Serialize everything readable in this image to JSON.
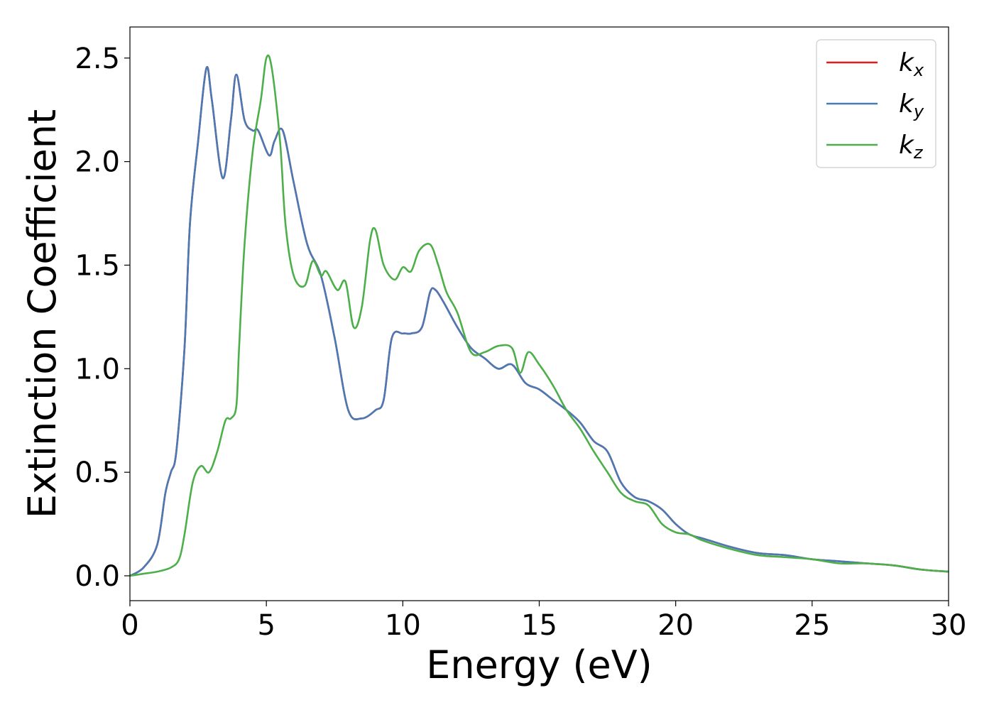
{
  "chart_data": {
    "type": "line",
    "title": "",
    "xlabel": "Energy (eV)",
    "ylabel": "Extinction Coefficient",
    "xlim": [
      0,
      30
    ],
    "ylim": [
      -0.12,
      2.65
    ],
    "xticks": [
      0,
      5,
      10,
      15,
      20,
      25,
      30
    ],
    "yticks": [
      0.0,
      0.5,
      1.0,
      1.5,
      2.0,
      2.5
    ],
    "xtick_labels": [
      "0",
      "5",
      "10",
      "15",
      "20",
      "25",
      "30"
    ],
    "ytick_labels": [
      "0.0",
      "0.5",
      "1.0",
      "1.5",
      "2.0",
      "2.5"
    ],
    "grid": false,
    "legend_position": "top-right",
    "series": [
      {
        "name": "k",
        "sub": "x",
        "color": "#e41a1c",
        "x": [
          0,
          0.5,
          1.0,
          1.3,
          1.5,
          1.7,
          2.0,
          2.2,
          2.5,
          2.8,
          3.0,
          3.4,
          3.7,
          3.9,
          4.2,
          4.5,
          4.7,
          5.1,
          5.3,
          5.6,
          6.0,
          6.5,
          7.0,
          7.5,
          8.0,
          8.5,
          9.0,
          9.3,
          9.6,
          10.0,
          10.3,
          10.7,
          11.0,
          11.2,
          11.5,
          12.0,
          12.5,
          13.0,
          13.5,
          14.0,
          14.5,
          15.0,
          15.5,
          16.0,
          16.5,
          17.0,
          17.5,
          18.0,
          18.5,
          19.0,
          19.5,
          20.0,
          20.5,
          21.0,
          22.0,
          23.0,
          24.0,
          25.0,
          26.0,
          27.0,
          28.0,
          29.0,
          30.0
        ],
        "values": [
          0.0,
          0.04,
          0.15,
          0.4,
          0.5,
          0.6,
          1.1,
          1.7,
          2.1,
          2.45,
          2.3,
          1.92,
          2.2,
          2.42,
          2.2,
          2.15,
          2.15,
          2.03,
          2.1,
          2.15,
          1.9,
          1.6,
          1.45,
          1.15,
          0.8,
          0.76,
          0.8,
          0.85,
          1.15,
          1.17,
          1.17,
          1.2,
          1.37,
          1.38,
          1.32,
          1.2,
          1.1,
          1.05,
          1.0,
          1.02,
          0.93,
          0.9,
          0.85,
          0.8,
          0.74,
          0.65,
          0.6,
          0.45,
          0.38,
          0.36,
          0.32,
          0.25,
          0.2,
          0.18,
          0.14,
          0.11,
          0.1,
          0.08,
          0.07,
          0.06,
          0.05,
          0.03,
          0.02
        ]
      },
      {
        "name": "k",
        "sub": "y",
        "color": "#4a7ab5",
        "x": [
          0,
          0.5,
          1.0,
          1.3,
          1.5,
          1.7,
          2.0,
          2.2,
          2.5,
          2.8,
          3.0,
          3.4,
          3.7,
          3.9,
          4.2,
          4.5,
          4.7,
          5.1,
          5.3,
          5.6,
          6.0,
          6.5,
          7.0,
          7.5,
          8.0,
          8.5,
          9.0,
          9.3,
          9.6,
          10.0,
          10.3,
          10.7,
          11.0,
          11.2,
          11.5,
          12.0,
          12.5,
          13.0,
          13.5,
          14.0,
          14.5,
          15.0,
          15.5,
          16.0,
          16.5,
          17.0,
          17.5,
          18.0,
          18.5,
          19.0,
          19.5,
          20.0,
          20.5,
          21.0,
          22.0,
          23.0,
          24.0,
          25.0,
          26.0,
          27.0,
          28.0,
          29.0,
          30.0
        ],
        "values": [
          0.0,
          0.04,
          0.15,
          0.4,
          0.5,
          0.6,
          1.1,
          1.7,
          2.1,
          2.45,
          2.3,
          1.92,
          2.2,
          2.42,
          2.2,
          2.15,
          2.15,
          2.03,
          2.1,
          2.15,
          1.9,
          1.6,
          1.45,
          1.15,
          0.8,
          0.76,
          0.8,
          0.85,
          1.15,
          1.17,
          1.17,
          1.2,
          1.37,
          1.38,
          1.32,
          1.2,
          1.1,
          1.05,
          1.0,
          1.02,
          0.93,
          0.9,
          0.85,
          0.8,
          0.74,
          0.65,
          0.6,
          0.45,
          0.38,
          0.36,
          0.32,
          0.25,
          0.2,
          0.18,
          0.14,
          0.11,
          0.1,
          0.08,
          0.07,
          0.06,
          0.05,
          0.03,
          0.02
        ]
      },
      {
        "name": "k",
        "sub": "z",
        "color": "#4daf4a",
        "x": [
          0,
          0.5,
          1.0,
          1.5,
          1.8,
          2.0,
          2.3,
          2.6,
          2.9,
          3.2,
          3.5,
          3.7,
          3.9,
          4.0,
          4.2,
          4.5,
          4.8,
          5.0,
          5.2,
          5.5,
          5.7,
          6.0,
          6.4,
          6.7,
          7.0,
          7.2,
          7.6,
          7.9,
          8.2,
          8.5,
          8.8,
          9.0,
          9.3,
          9.7,
          10.0,
          10.3,
          10.6,
          11.0,
          11.3,
          11.6,
          12.0,
          12.5,
          13.0,
          13.5,
          14.0,
          14.3,
          14.6,
          15.0,
          15.5,
          16.0,
          16.5,
          17.0,
          17.5,
          18.0,
          18.5,
          19.0,
          19.5,
          20.0,
          20.5,
          21.0,
          22.0,
          23.0,
          24.0,
          25.0,
          26.0,
          27.0,
          28.0,
          29.0,
          30.0
        ],
        "values": [
          0.0,
          0.01,
          0.02,
          0.04,
          0.08,
          0.2,
          0.45,
          0.53,
          0.5,
          0.6,
          0.75,
          0.76,
          0.82,
          1.1,
          1.6,
          2.05,
          2.3,
          2.5,
          2.45,
          2.1,
          1.7,
          1.45,
          1.4,
          1.52,
          1.45,
          1.47,
          1.38,
          1.42,
          1.2,
          1.3,
          1.62,
          1.67,
          1.5,
          1.43,
          1.49,
          1.47,
          1.57,
          1.6,
          1.5,
          1.37,
          1.27,
          1.08,
          1.08,
          1.11,
          1.1,
          0.98,
          1.08,
          1.02,
          0.92,
          0.8,
          0.71,
          0.6,
          0.5,
          0.4,
          0.36,
          0.34,
          0.25,
          0.21,
          0.2,
          0.17,
          0.13,
          0.1,
          0.09,
          0.08,
          0.06,
          0.06,
          0.05,
          0.03,
          0.02
        ]
      }
    ]
  }
}
